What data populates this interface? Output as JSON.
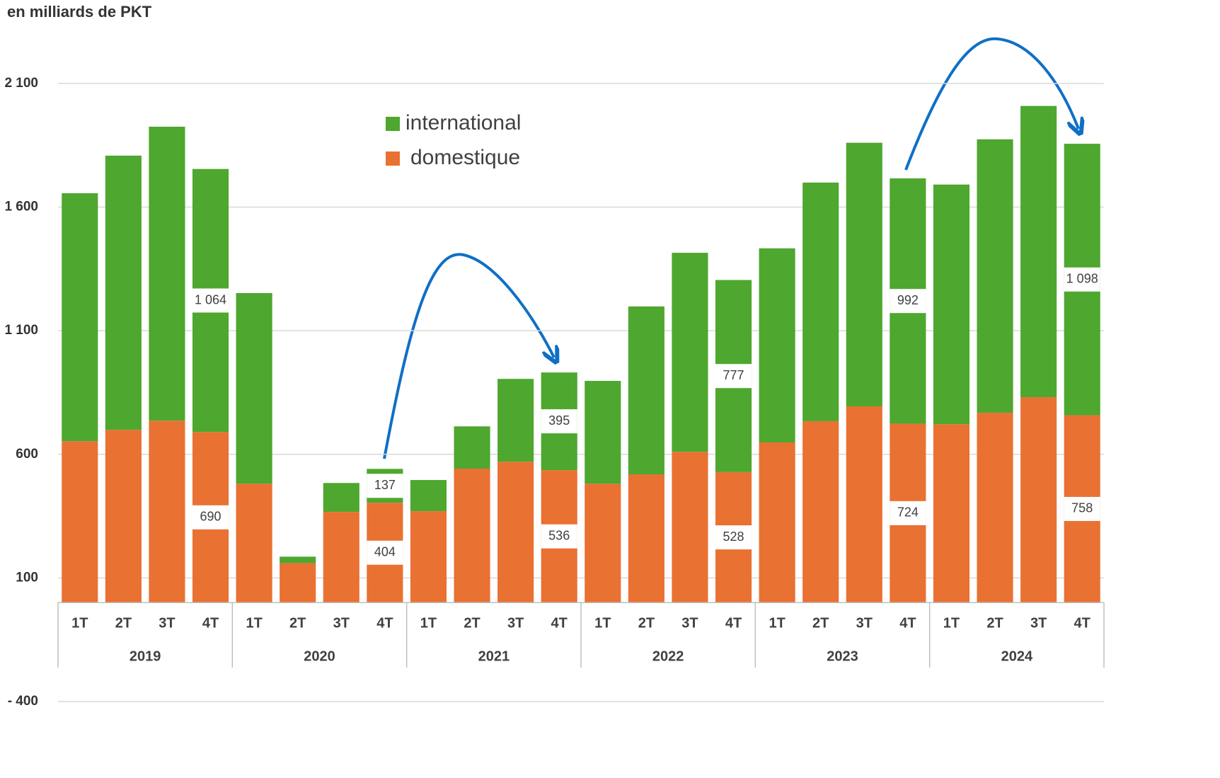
{
  "chart_data": {
    "type": "stacked_bar",
    "title": "en milliards de PKT",
    "categories": [
      "1T",
      "2T",
      "3T",
      "4T",
      "1T",
      "2T",
      "3T",
      "4T",
      "1T",
      "2T",
      "3T",
      "4T",
      "1T",
      "2T",
      "3T",
      "4T",
      "1T",
      "2T",
      "3T",
      "4T",
      "1T",
      "2T",
      "3T",
      "4T"
    ],
    "groups": [
      "2019",
      "2020",
      "2021",
      "2022",
      "2023",
      "2024"
    ],
    "series": [
      {
        "name": "domestique",
        "color": "#e97132",
        "values": [
          653,
          699,
          736,
          690,
          481,
          160,
          367,
          404,
          370,
          542,
          570,
          536,
          481,
          519,
          610,
          528,
          648,
          734,
          794,
          724,
          722,
          768,
          831,
          758
        ],
        "value_labels": [
          null,
          null,
          null,
          "690",
          null,
          null,
          null,
          "404",
          null,
          null,
          null,
          "536",
          null,
          null,
          null,
          "528",
          null,
          null,
          null,
          "724",
          null,
          null,
          null,
          "758"
        ]
      },
      {
        "name": "international",
        "color": "#4ea72e",
        "values": [
          1003,
          1109,
          1189,
          1064,
          771,
          26,
          117,
          137,
          126,
          171,
          335,
          395,
          416,
          679,
          805,
          777,
          785,
          965,
          1066,
          992,
          969,
          1106,
          1178,
          1098
        ],
        "value_labels": [
          null,
          null,
          null,
          "1 064",
          null,
          null,
          null,
          "137",
          null,
          null,
          null,
          "395",
          null,
          null,
          null,
          "777",
          null,
          null,
          null,
          "992",
          null,
          null,
          null,
          "1 098"
        ]
      }
    ],
    "ylim": [
      -400,
      2300
    ],
    "yticks": [
      {
        "value": -400,
        "label": "- 400"
      },
      100,
      600,
      {
        "value": 1100,
        "label": "1 100"
      },
      {
        "value": 1600,
        "label": "1 600"
      },
      {
        "value": 2100,
        "label": "2 100"
      }
    ],
    "grid": true,
    "legend": "top-center"
  }
}
